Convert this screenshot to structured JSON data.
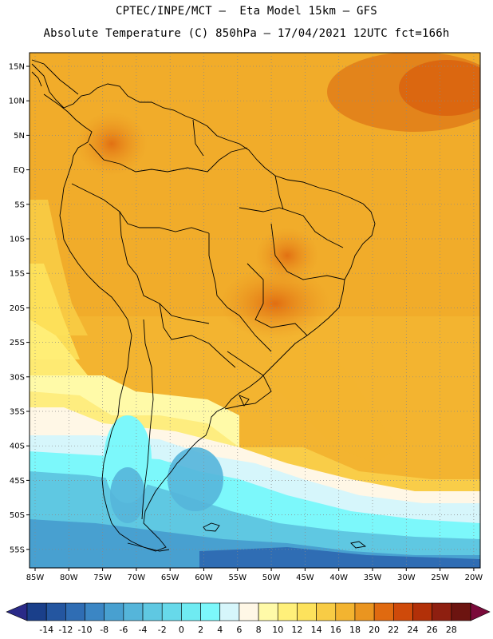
{
  "header": {
    "line1": "CPTEC/INPE/MCT –  Eta Model 15km – GFS",
    "line2": "Absolute Temperature (C) 850hPa – 17/04/2021 12UTC fct=166h"
  },
  "map": {
    "region": "South America",
    "lat_labels": [
      "15N",
      "10N",
      "5N",
      "EQ",
      "5S",
      "10S",
      "15S",
      "20S",
      "25S",
      "30S",
      "35S",
      "40S",
      "45S",
      "50S",
      "55S"
    ],
    "lon_labels": [
      "85W",
      "80W",
      "75W",
      "70W",
      "65W",
      "60W",
      "55W",
      "50W",
      "45W",
      "40W",
      "35W",
      "30W",
      "25W",
      "20W"
    ]
  },
  "colorbar": {
    "labels": [
      "-14",
      "-12",
      "-10",
      "-8",
      "-6",
      "-4",
      "-2",
      "0",
      "2",
      "4",
      "6",
      "8",
      "10",
      "12",
      "14",
      "16",
      "18",
      "20",
      "22",
      "24",
      "26",
      "28"
    ],
    "colors": [
      "#1a3f8a",
      "#2456a0",
      "#2f6db4",
      "#3b86c4",
      "#48a0d0",
      "#55b5da",
      "#5fc8e2",
      "#67d9ea",
      "#6febf2",
      "#7cf8fb",
      "#d6f6fb",
      "#fff7e6",
      "#fffaa8",
      "#fff07a",
      "#fde25c",
      "#f8cc45",
      "#f3b430",
      "#ea9520",
      "#e06a10",
      "#cf4a0a",
      "#b23008",
      "#8e1f10",
      "#6c1410"
    ],
    "left_cap": "#2a2a88",
    "right_cap": "#7a0a3a"
  }
}
